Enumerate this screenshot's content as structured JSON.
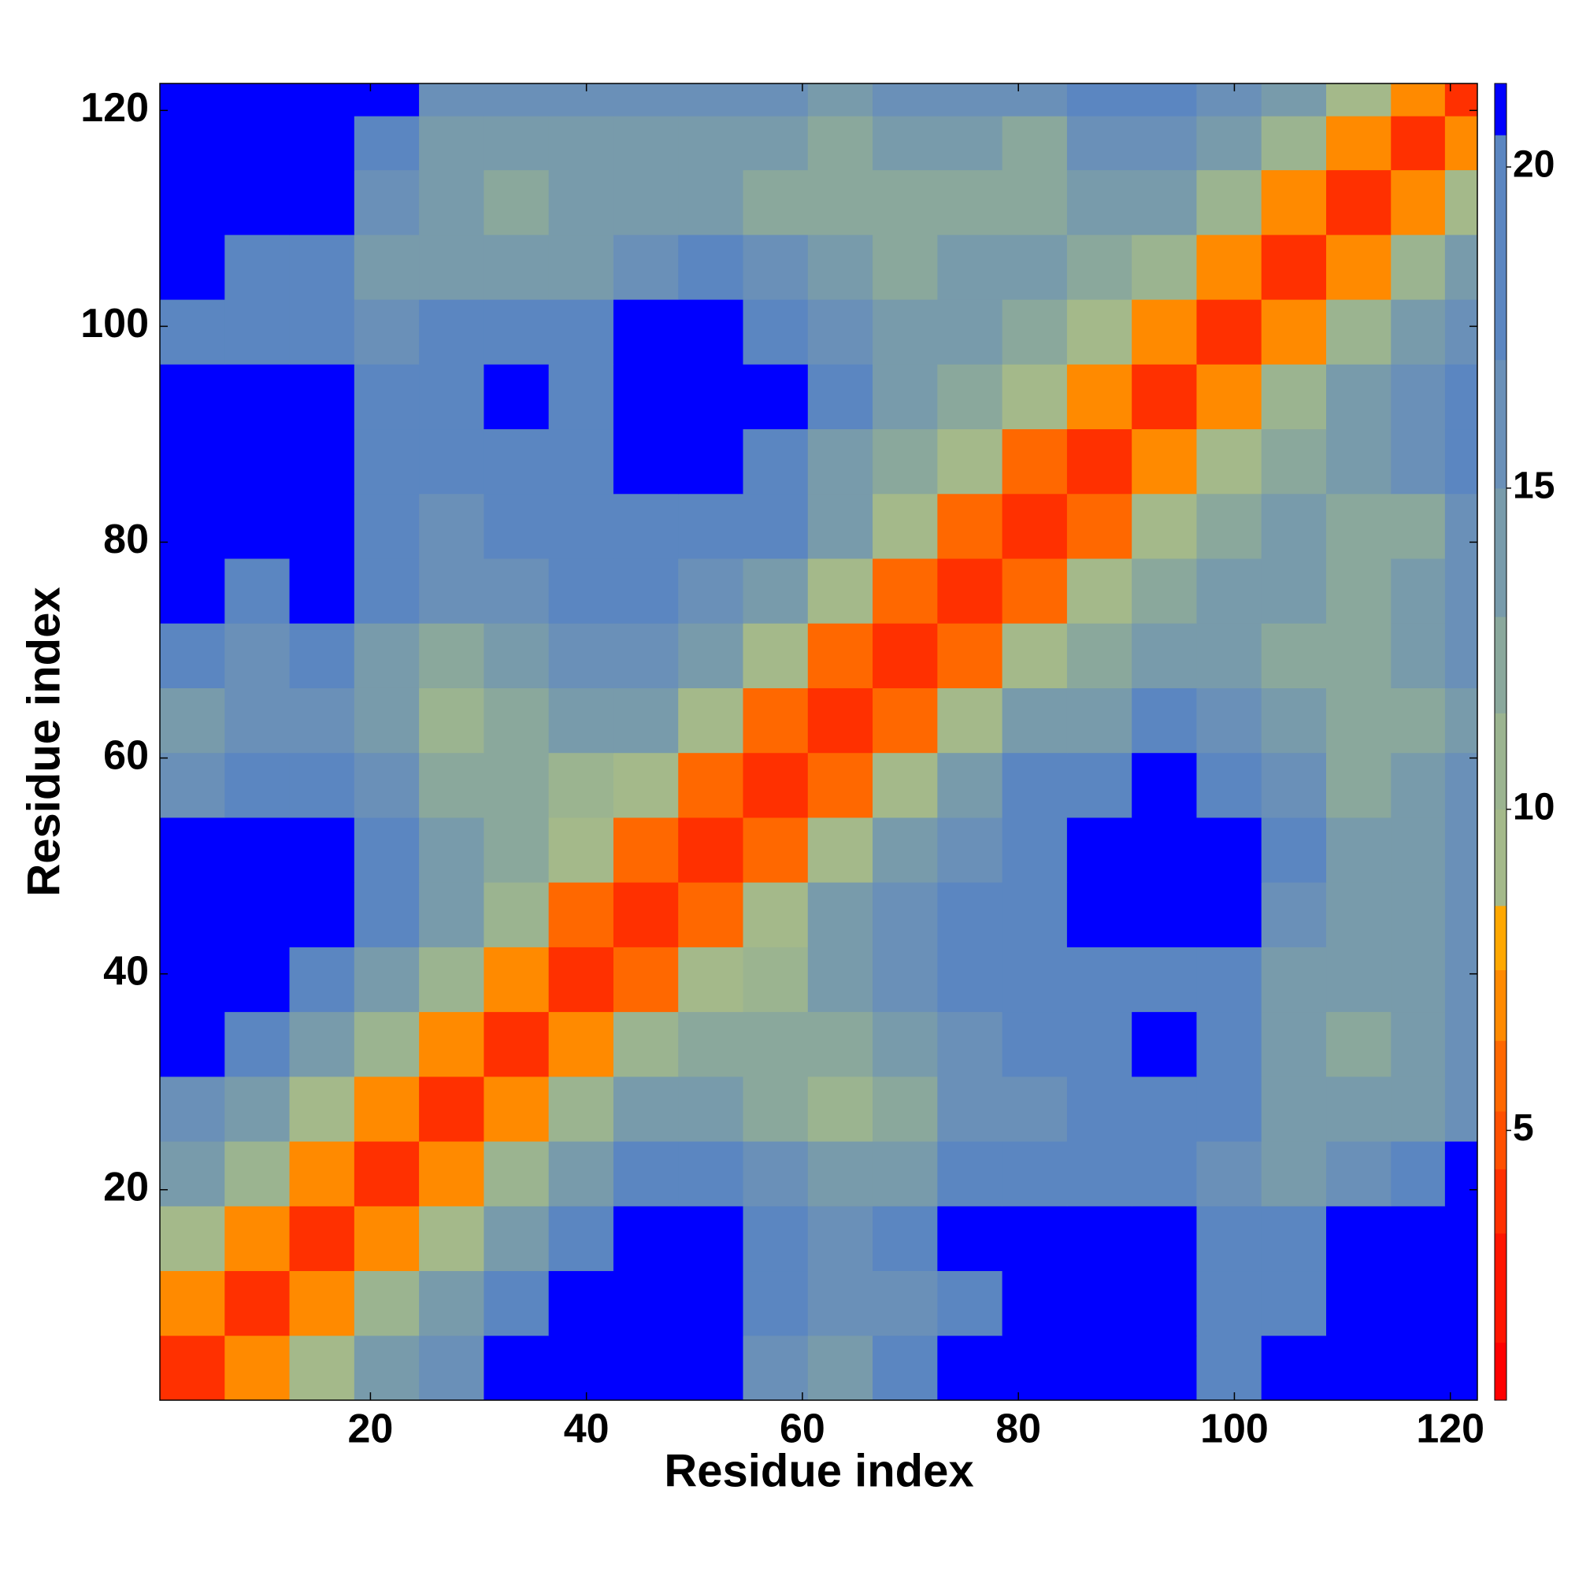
{
  "chart_data": {
    "type": "heatmap",
    "xlabel": "Residue index",
    "ylabel": "Residue index",
    "x": [
      3.5,
      9.5,
      15.5,
      21.5,
      27.5,
      33.5,
      39.5,
      45.5,
      51.5,
      57.5,
      63.5,
      69.5,
      75.5,
      81.5,
      87.5,
      93.5,
      99.5,
      105.5,
      111.5,
      117.5,
      121.5
    ],
    "y": [
      3.5,
      9.5,
      15.5,
      21.5,
      27.5,
      33.5,
      39.5,
      45.5,
      51.5,
      57.5,
      63.5,
      69.5,
      75.5,
      81.5,
      87.5,
      93.5,
      99.5,
      105.5,
      111.5,
      117.5,
      121.5
    ],
    "z": [
      [
        4,
        7,
        10,
        14,
        16,
        21,
        21,
        21,
        21,
        17,
        15,
        19,
        21,
        21,
        21,
        21,
        20,
        21,
        21,
        21,
        21
      ],
      [
        7,
        4,
        7,
        11,
        14,
        18,
        21,
        21,
        21,
        19,
        16,
        17,
        20,
        21,
        21,
        21,
        19,
        20,
        21,
        21,
        21
      ],
      [
        10,
        7,
        4,
        7,
        10,
        14,
        20,
        21,
        21,
        20,
        17,
        18,
        21,
        21,
        21,
        21,
        18,
        19,
        21,
        21,
        21
      ],
      [
        14,
        11,
        7,
        4,
        7,
        11,
        15,
        20,
        20,
        16,
        15,
        15,
        18,
        19,
        20,
        19,
        17,
        15,
        17,
        20,
        21
      ],
      [
        16,
        14,
        10,
        7,
        4,
        7,
        11,
        14,
        15,
        12,
        11,
        13,
        16,
        17,
        18,
        20,
        18,
        15,
        14,
        15,
        17
      ],
      [
        21,
        18,
        14,
        11,
        7,
        4,
        7,
        11,
        13,
        12,
        12,
        14,
        17,
        19,
        20,
        21,
        19,
        14,
        12,
        14,
        16
      ],
      [
        21,
        21,
        20,
        15,
        11,
        7,
        4,
        6,
        10,
        11,
        14,
        16,
        18,
        18,
        19,
        20,
        20,
        15,
        14,
        15,
        17
      ],
      [
        21,
        21,
        21,
        20,
        14,
        11,
        6,
        4,
        6,
        10,
        14,
        17,
        19,
        20,
        21,
        21,
        21,
        17,
        14,
        15,
        17
      ],
      [
        21,
        21,
        21,
        20,
        15,
        13,
        10,
        6,
        4,
        6,
        10,
        14,
        17,
        20,
        21,
        21,
        21,
        18,
        14,
        15,
        16
      ],
      [
        17,
        19,
        20,
        16,
        12,
        12,
        11,
        10,
        6,
        4,
        6,
        10,
        14,
        18,
        20,
        21,
        20,
        16,
        13,
        14,
        16
      ],
      [
        15,
        16,
        17,
        15,
        11,
        12,
        14,
        14,
        10,
        6,
        4,
        6,
        10,
        14,
        15,
        18,
        17,
        14,
        12,
        13,
        15
      ],
      [
        19,
        17,
        18,
        15,
        13,
        14,
        16,
        17,
        14,
        10,
        6,
        4,
        6,
        10,
        12,
        14,
        15,
        13,
        12,
        14,
        16
      ],
      [
        21,
        20,
        21,
        18,
        16,
        17,
        18,
        19,
        17,
        14,
        10,
        6,
        4,
        6,
        10,
        13,
        15,
        14,
        12,
        14,
        17
      ],
      [
        21,
        21,
        21,
        19,
        17,
        19,
        18,
        20,
        20,
        18,
        14,
        10,
        6,
        4,
        6,
        10,
        13,
        14,
        12,
        13,
        16
      ],
      [
        21,
        21,
        21,
        20,
        18,
        20,
        19,
        21,
        21,
        20,
        15,
        12,
        10,
        6,
        4,
        7,
        10,
        13,
        14,
        16,
        18
      ],
      [
        21,
        21,
        21,
        19,
        20,
        21,
        20,
        21,
        21,
        21,
        18,
        14,
        13,
        10,
        7,
        4,
        7,
        11,
        14,
        17,
        19
      ],
      [
        20,
        19,
        18,
        17,
        18,
        19,
        20,
        21,
        21,
        20,
        17,
        15,
        15,
        13,
        10,
        7,
        4,
        7,
        11,
        14,
        17
      ],
      [
        21,
        20,
        19,
        15,
        15,
        14,
        15,
        17,
        18,
        16,
        14,
        13,
        14,
        14,
        13,
        11,
        7,
        4,
        7,
        11,
        14
      ],
      [
        21,
        21,
        21,
        17,
        14,
        12,
        14,
        14,
        14,
        13,
        12,
        12,
        12,
        12,
        14,
        14,
        11,
        7,
        4,
        7,
        10
      ],
      [
        21,
        21,
        21,
        20,
        15,
        14,
        15,
        15,
        15,
        14,
        13,
        14,
        14,
        13,
        16,
        17,
        14,
        11,
        7,
        4,
        7
      ],
      [
        21,
        21,
        21,
        21,
        17,
        16,
        17,
        17,
        16,
        16,
        15,
        16,
        17,
        16,
        18,
        19,
        17,
        14,
        10,
        7,
        4
      ]
    ],
    "xlim": [
      0.5,
      122.5
    ],
    "ylim": [
      0.5,
      122.5
    ],
    "xticks": [
      20,
      40,
      60,
      80,
      100,
      120
    ],
    "yticks": [
      20,
      40,
      60,
      80,
      100,
      120
    ],
    "colorbar": {
      "lim": [
        0.8,
        21.3
      ],
      "ticks": [
        5,
        10,
        15,
        20
      ],
      "levels": [
        {
          "max": 1.7,
          "color": "#ff0000"
        },
        {
          "max": 3.4,
          "color": "#ff1500"
        },
        {
          "max": 4.4,
          "color": "#ff3000"
        },
        {
          "max": 5.3,
          "color": "#ff5000"
        },
        {
          "max": 6.4,
          "color": "#ff6800"
        },
        {
          "max": 7.5,
          "color": "#ff8a00"
        },
        {
          "max": 8.5,
          "color": "#ffa800"
        },
        {
          "max": 10,
          "color": "#a4b98a"
        },
        {
          "max": 11.5,
          "color": "#9bb490"
        },
        {
          "max": 13,
          "color": "#8aa89c"
        },
        {
          "max": 15,
          "color": "#789bab"
        },
        {
          "max": 17,
          "color": "#6a90b8"
        },
        {
          "max": 20.5,
          "color": "#5b86c1"
        },
        {
          "max": 21.3,
          "color": "#0000ff"
        }
      ]
    }
  }
}
